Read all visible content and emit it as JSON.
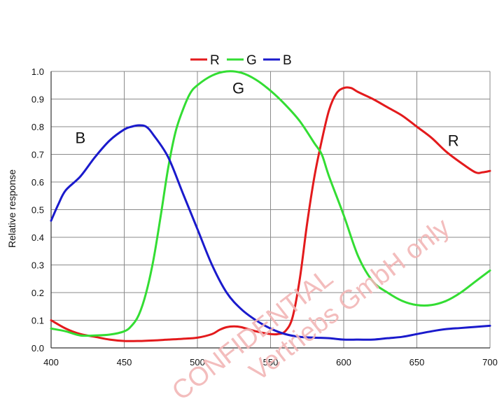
{
  "chart_data": {
    "type": "line",
    "title": "",
    "xlabel": "",
    "ylabel": "Relative response",
    "xlim": [
      400,
      700
    ],
    "ylim": [
      0.0,
      1.0
    ],
    "x_ticks": [
      400,
      450,
      500,
      550,
      600,
      650,
      700
    ],
    "y_ticks": [
      "0.0",
      "0.1",
      "0.2",
      "0.3",
      "0.4",
      "0.5",
      "0.6",
      "0.7",
      "0.8",
      "0.9",
      "1.0"
    ],
    "grid": true,
    "legend_position": "top-center",
    "series": [
      {
        "name": "R",
        "color": "#e31a1c",
        "points": [
          [
            400,
            0.1
          ],
          [
            410,
            0.07
          ],
          [
            420,
            0.05
          ],
          [
            430,
            0.04
          ],
          [
            440,
            0.03
          ],
          [
            450,
            0.025
          ],
          [
            460,
            0.025
          ],
          [
            470,
            0.027
          ],
          [
            480,
            0.03
          ],
          [
            490,
            0.033
          ],
          [
            500,
            0.037
          ],
          [
            510,
            0.05
          ],
          [
            515,
            0.065
          ],
          [
            520,
            0.075
          ],
          [
            525,
            0.078
          ],
          [
            530,
            0.075
          ],
          [
            540,
            0.06
          ],
          [
            550,
            0.05
          ],
          [
            555,
            0.05
          ],
          [
            560,
            0.06
          ],
          [
            565,
            0.11
          ],
          [
            570,
            0.25
          ],
          [
            575,
            0.45
          ],
          [
            580,
            0.62
          ],
          [
            585,
            0.75
          ],
          [
            590,
            0.86
          ],
          [
            595,
            0.92
          ],
          [
            600,
            0.94
          ],
          [
            605,
            0.94
          ],
          [
            610,
            0.925
          ],
          [
            620,
            0.9
          ],
          [
            630,
            0.87
          ],
          [
            640,
            0.84
          ],
          [
            650,
            0.8
          ],
          [
            660,
            0.76
          ],
          [
            670,
            0.71
          ],
          [
            680,
            0.67
          ],
          [
            690,
            0.635
          ],
          [
            695,
            0.635
          ],
          [
            700,
            0.64
          ]
        ]
      },
      {
        "name": "G",
        "color": "#33dd33",
        "points": [
          [
            400,
            0.07
          ],
          [
            410,
            0.06
          ],
          [
            420,
            0.045
          ],
          [
            430,
            0.045
          ],
          [
            440,
            0.048
          ],
          [
            450,
            0.06
          ],
          [
            455,
            0.08
          ],
          [
            460,
            0.12
          ],
          [
            465,
            0.2
          ],
          [
            470,
            0.32
          ],
          [
            475,
            0.48
          ],
          [
            480,
            0.65
          ],
          [
            485,
            0.78
          ],
          [
            490,
            0.86
          ],
          [
            495,
            0.92
          ],
          [
            500,
            0.95
          ],
          [
            510,
            0.985
          ],
          [
            520,
            1.0
          ],
          [
            530,
            0.995
          ],
          [
            540,
            0.97
          ],
          [
            550,
            0.93
          ],
          [
            560,
            0.88
          ],
          [
            570,
            0.82
          ],
          [
            580,
            0.74
          ],
          [
            585,
            0.7
          ],
          [
            590,
            0.62
          ],
          [
            600,
            0.48
          ],
          [
            610,
            0.33
          ],
          [
            620,
            0.24
          ],
          [
            630,
            0.2
          ],
          [
            640,
            0.17
          ],
          [
            650,
            0.155
          ],
          [
            660,
            0.155
          ],
          [
            670,
            0.17
          ],
          [
            680,
            0.2
          ],
          [
            690,
            0.24
          ],
          [
            700,
            0.28
          ]
        ]
      },
      {
        "name": "B",
        "color": "#1a1acc",
        "points": [
          [
            400,
            0.46
          ],
          [
            405,
            0.52
          ],
          [
            410,
            0.57
          ],
          [
            420,
            0.62
          ],
          [
            430,
            0.69
          ],
          [
            440,
            0.75
          ],
          [
            450,
            0.79
          ],
          [
            455,
            0.8
          ],
          [
            460,
            0.805
          ],
          [
            465,
            0.8
          ],
          [
            470,
            0.77
          ],
          [
            480,
            0.69
          ],
          [
            490,
            0.56
          ],
          [
            500,
            0.43
          ],
          [
            510,
            0.3
          ],
          [
            520,
            0.2
          ],
          [
            530,
            0.14
          ],
          [
            540,
            0.1
          ],
          [
            550,
            0.07
          ],
          [
            560,
            0.05
          ],
          [
            570,
            0.04
          ],
          [
            580,
            0.037
          ],
          [
            590,
            0.035
          ],
          [
            600,
            0.03
          ],
          [
            610,
            0.03
          ],
          [
            620,
            0.03
          ],
          [
            630,
            0.035
          ],
          [
            640,
            0.04
          ],
          [
            650,
            0.05
          ],
          [
            660,
            0.06
          ],
          [
            670,
            0.068
          ],
          [
            680,
            0.072
          ],
          [
            690,
            0.076
          ],
          [
            700,
            0.08
          ]
        ]
      }
    ],
    "curve_labels": [
      {
        "text": "B",
        "x": 420,
        "y": 0.74
      },
      {
        "text": "G",
        "x": 528,
        "y": 0.92
      },
      {
        "text": "R",
        "x": 675,
        "y": 0.73
      }
    ]
  },
  "watermark": {
    "line1": "CONFIDENTIAL",
    "line2": "Vertriebs GmbH only",
    "color": "#f2b6b6"
  }
}
